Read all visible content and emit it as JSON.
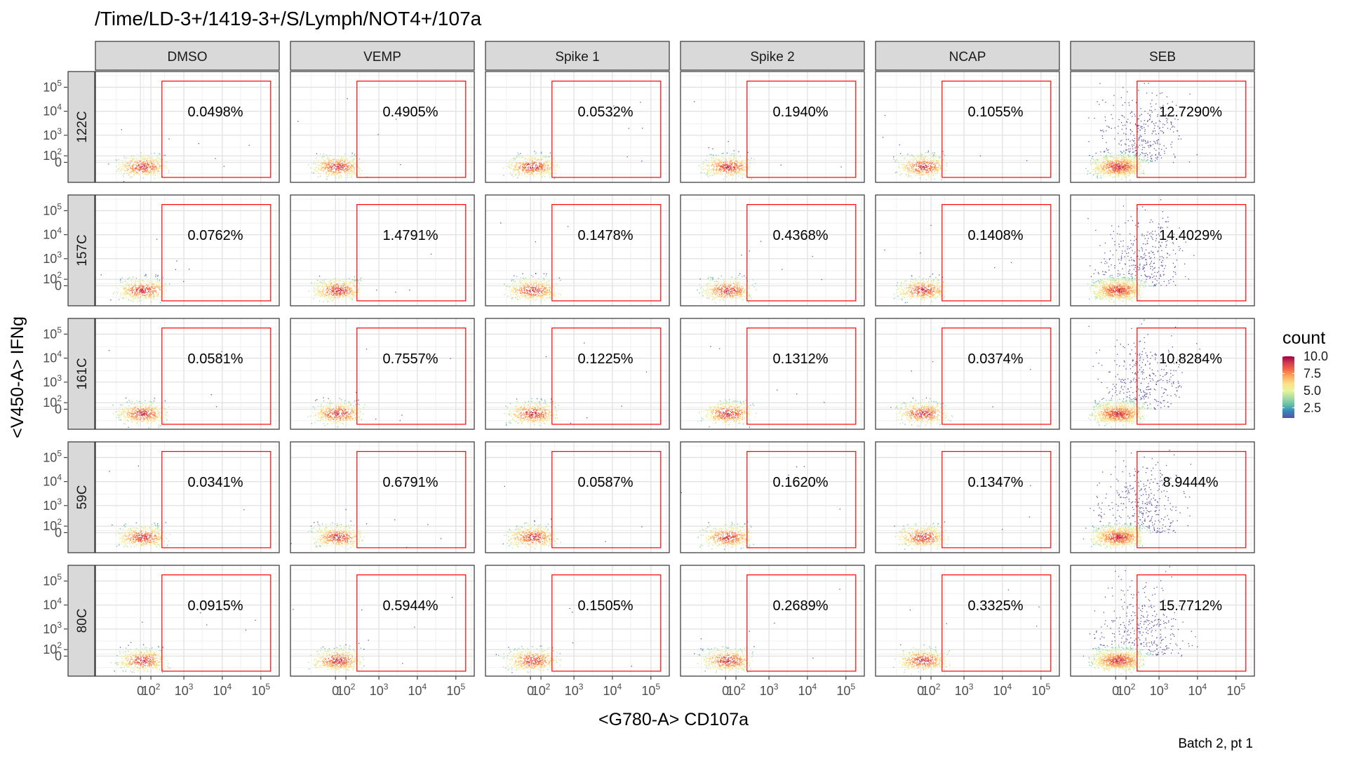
{
  "chart_data": {
    "type": "scatter",
    "title": "/Time/LD-3+/1419-3+/S/Lymph/NOT4+/107a",
    "xlabel": "<G780-A> CD107a",
    "ylabel": "<V450-A> IFNg",
    "caption": "Batch 2, pt 1",
    "columns": [
      "DMSO",
      "VEMP",
      "Spike 1",
      "Spike 2",
      "NCAP",
      "SEB"
    ],
    "rows": [
      "122C",
      "157C",
      "161C",
      "59C",
      "80C"
    ],
    "x_ticks": [
      {
        "value": 0,
        "base": "0",
        "exp": ""
      },
      {
        "value": 100,
        "base": "10",
        "exp": "2"
      },
      {
        "value": 1000,
        "base": "10",
        "exp": "3"
      },
      {
        "value": 10000,
        "base": "10",
        "exp": "4"
      },
      {
        "value": 100000,
        "base": "10",
        "exp": "5"
      }
    ],
    "y_ticks": [
      {
        "value": 0,
        "base": "0",
        "exp": ""
      },
      {
        "value": 100,
        "base": "10",
        "exp": "2"
      },
      {
        "value": 1000,
        "base": "10",
        "exp": "3"
      },
      {
        "value": 10000,
        "base": "10",
        "exp": "4"
      },
      {
        "value": 100000,
        "base": "10",
        "exp": "5"
      }
    ],
    "gate": {
      "x_range": [
        250,
        180000
      ],
      "y_range": [
        -300,
        180000
      ],
      "color": "#ff0000"
    },
    "percentages": [
      [
        "0.0498%",
        "0.4905%",
        "0.0532%",
        "0.1940%",
        "0.1055%",
        "12.7290%"
      ],
      [
        "0.0762%",
        "1.4791%",
        "0.1478%",
        "0.4368%",
        "0.1408%",
        "14.4029%"
      ],
      [
        "0.0581%",
        "0.7557%",
        "0.1225%",
        "0.1312%",
        "0.0374%",
        "10.8284%"
      ],
      [
        "0.0341%",
        "0.6791%",
        "0.0587%",
        "0.1620%",
        "0.1347%",
        "8.9444%"
      ],
      [
        "0.0915%",
        "0.5944%",
        "0.1505%",
        "0.2689%",
        "0.3325%",
        "15.7712%"
      ]
    ],
    "legend": {
      "title": "count",
      "labels": [
        "10.0",
        "7.5",
        "5.0",
        "2.5"
      ],
      "values": [
        10,
        7.5,
        5,
        2.5
      ],
      "range": [
        1,
        10
      ],
      "colors": [
        "#5e4fa2",
        "#3288bd",
        "#66c2a5",
        "#abdda4",
        "#e6f598",
        "#fee08b",
        "#fdae61",
        "#f46d43",
        "#d53e4f",
        "#9e0142"
      ]
    },
    "strip_fill": "#d9d9d9",
    "grid": true
  }
}
